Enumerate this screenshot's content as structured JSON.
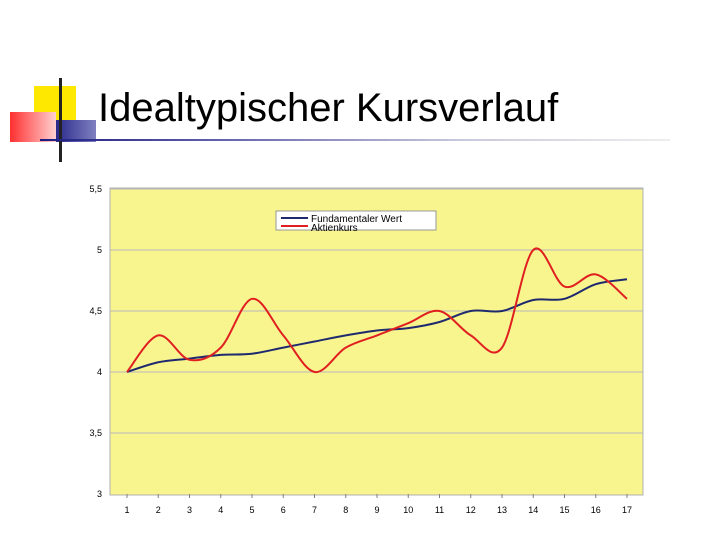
{
  "slide": {
    "title": "Idealtypischer Kursverlauf"
  },
  "colors": {
    "plot_background": "#f8f58f",
    "fundamental": "#1f2a6e",
    "stock": "#e02020",
    "accent_yellow": "#ffe800",
    "accent_red": "#ff4040",
    "accent_blue": "#2a2a8c"
  },
  "chart_data": {
    "type": "line",
    "title": "",
    "xlabel": "",
    "ylabel": "",
    "categories": [
      1,
      2,
      3,
      4,
      5,
      6,
      7,
      8,
      9,
      10,
      11,
      12,
      13,
      14,
      15,
      16,
      17
    ],
    "y_ticks": [
      "3",
      "3,5",
      "4",
      "4,5",
      "5",
      "5,5"
    ],
    "ylim": [
      3,
      5.5
    ],
    "grid": true,
    "legend_position": "top-center",
    "series": [
      {
        "name": "Fundamentaler Wert",
        "color": "#1f2a6e",
        "values": [
          4.0,
          4.08,
          4.11,
          4.14,
          4.15,
          4.2,
          4.25,
          4.3,
          4.34,
          4.36,
          4.41,
          4.5,
          4.5,
          4.59,
          4.6,
          4.72,
          4.76
        ]
      },
      {
        "name": "Aktienkurs",
        "color": "#e02020",
        "values": [
          4.0,
          4.3,
          4.1,
          4.2,
          4.6,
          4.3,
          4.0,
          4.2,
          4.3,
          4.4,
          4.5,
          4.3,
          4.2,
          5.0,
          4.7,
          4.8,
          4.6
        ]
      }
    ]
  }
}
